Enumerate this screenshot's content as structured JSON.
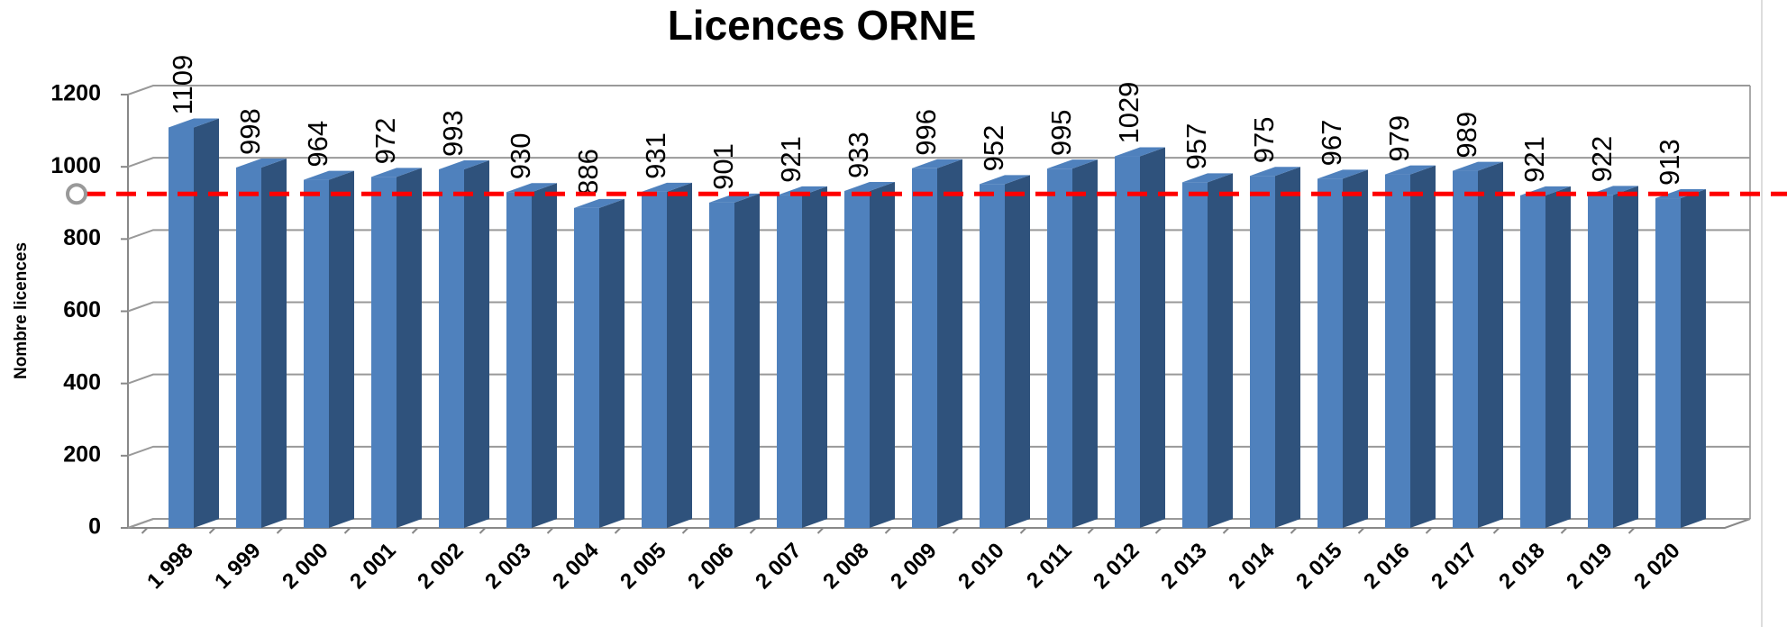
{
  "chart_data": {
    "type": "bar3d",
    "title": "Licences ORNE",
    "y_label": "Nombre licences",
    "categories": [
      "1 998",
      "1 999",
      "2 000",
      "2 001",
      "2 002",
      "2 003",
      "2 004",
      "2 005",
      "2 006",
      "2 007",
      "2 008",
      "2 009",
      "2 010",
      "2 011",
      "2 012",
      "2 013",
      "2 014",
      "2 015",
      "2 016",
      "2 017",
      "2 018",
      "2 019",
      "2 020"
    ],
    "values": [
      1109,
      998,
      964,
      972,
      993,
      930,
      886,
      931,
      901,
      921,
      933,
      996,
      952,
      995,
      1029,
      957,
      975,
      967,
      979,
      989,
      921,
      922,
      913
    ],
    "color": "#4f81bd",
    "side_color": "#2f527c",
    "ylim": [
      0,
      1200
    ],
    "yticks": [
      0,
      200,
      400,
      600,
      800,
      1000,
      1200
    ],
    "grid": true,
    "reference_line": {
      "value": 925,
      "color": "#ff0000"
    }
  }
}
